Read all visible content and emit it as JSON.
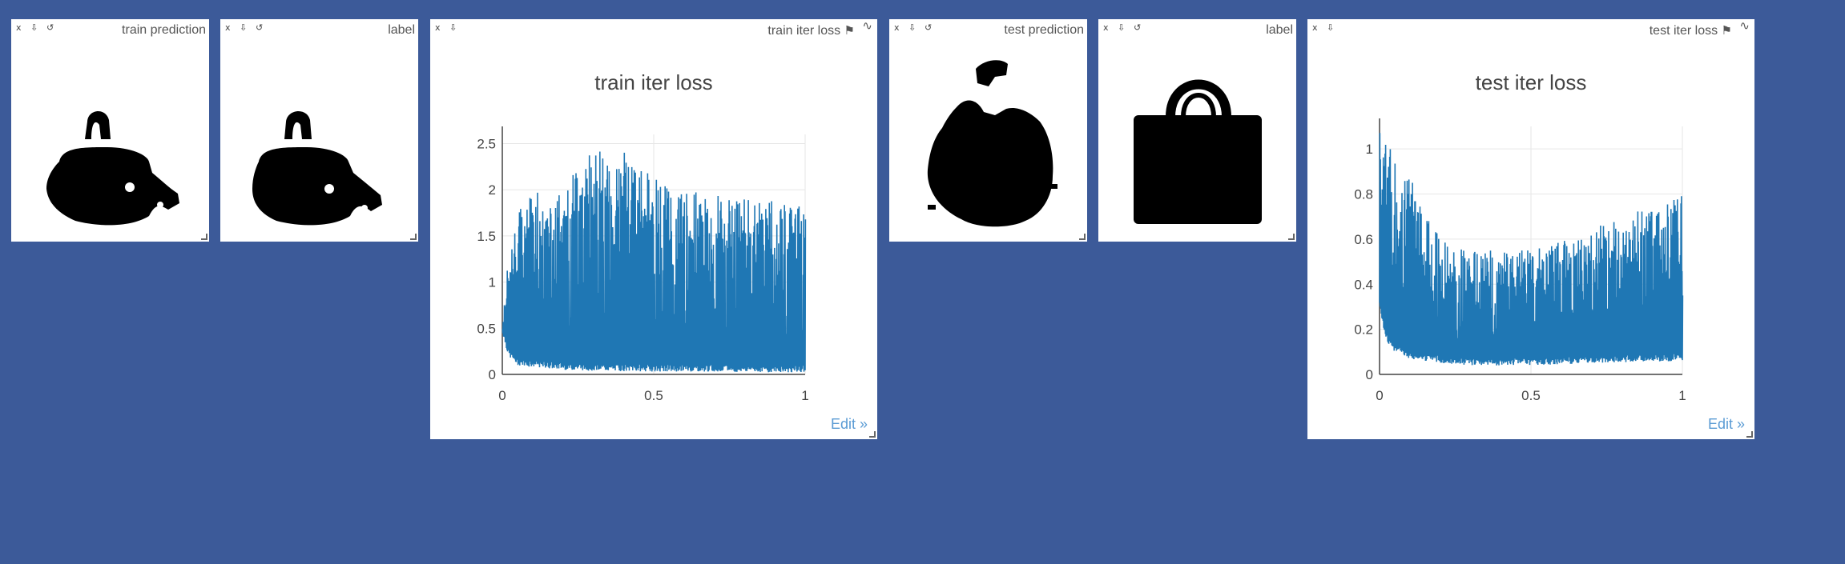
{
  "controls": {
    "close": "x",
    "download": "⇩",
    "reset": "↺"
  },
  "panes": {
    "train_prediction": {
      "title": "train prediction"
    },
    "train_label": {
      "title": "label"
    },
    "train_loss": {
      "title": "train iter loss",
      "edit": "Edit »"
    },
    "test_prediction": {
      "title": "test prediction"
    },
    "test_label": {
      "title": "label"
    },
    "test_loss": {
      "title": "test iter loss",
      "edit": "Edit »"
    }
  },
  "icons": {
    "tag": "tag-icon",
    "smooth": "smooth-icon"
  },
  "colors": {
    "background": "#3c5a99",
    "series": "#1f77b4",
    "edit_link": "#5a9bd4"
  },
  "chart_data": [
    {
      "type": "line",
      "title": "train iter loss",
      "xlim": [
        0,
        1
      ],
      "ylim": [
        0,
        2.6
      ],
      "xticks": [
        "0",
        "0.5",
        "1"
      ],
      "yticks": [
        "0",
        "0.5",
        "1",
        "1.5",
        "2",
        "2.5"
      ],
      "grid": true,
      "series": [
        {
          "envelope_x": [
            0.0,
            0.02,
            0.05,
            0.1,
            0.15,
            0.2,
            0.25,
            0.3,
            0.35,
            0.4,
            0.45,
            0.5,
            0.6,
            0.7,
            0.8,
            0.9,
            1.0
          ],
          "envelope_y": [
            0.6,
            1.3,
            1.75,
            2.0,
            1.95,
            2.0,
            2.3,
            2.45,
            2.5,
            2.45,
            2.25,
            2.15,
            2.0,
            1.95,
            1.9,
            1.9,
            1.85
          ],
          "floor_x": [
            0.0,
            0.02,
            0.05,
            0.1,
            0.2,
            0.3,
            0.5,
            0.7,
            1.0
          ],
          "floor_y": [
            0.45,
            0.2,
            0.1,
            0.08,
            0.05,
            0.04,
            0.03,
            0.03,
            0.02
          ]
        }
      ]
    },
    {
      "type": "line",
      "title": "test iter loss",
      "xlim": [
        0,
        1
      ],
      "ylim": [
        0,
        1.1
      ],
      "xticks": [
        "0",
        "0.5",
        "1"
      ],
      "yticks": [
        "0",
        "0.2",
        "0.4",
        "0.6",
        "0.8",
        "1"
      ],
      "grid": true,
      "series": [
        {
          "envelope_x": [
            0.0,
            0.02,
            0.05,
            0.1,
            0.15,
            0.2,
            0.3,
            0.4,
            0.5,
            0.6,
            0.7,
            0.8,
            0.9,
            1.0
          ],
          "envelope_y": [
            1.1,
            1.05,
            1.0,
            0.9,
            0.75,
            0.6,
            0.55,
            0.55,
            0.55,
            0.6,
            0.65,
            0.7,
            0.75,
            0.8
          ],
          "floor_x": [
            0.0,
            0.02,
            0.05,
            0.1,
            0.2,
            0.3,
            0.5,
            0.7,
            1.0
          ],
          "floor_y": [
            0.3,
            0.15,
            0.1,
            0.07,
            0.05,
            0.04,
            0.04,
            0.05,
            0.06
          ]
        }
      ]
    }
  ]
}
